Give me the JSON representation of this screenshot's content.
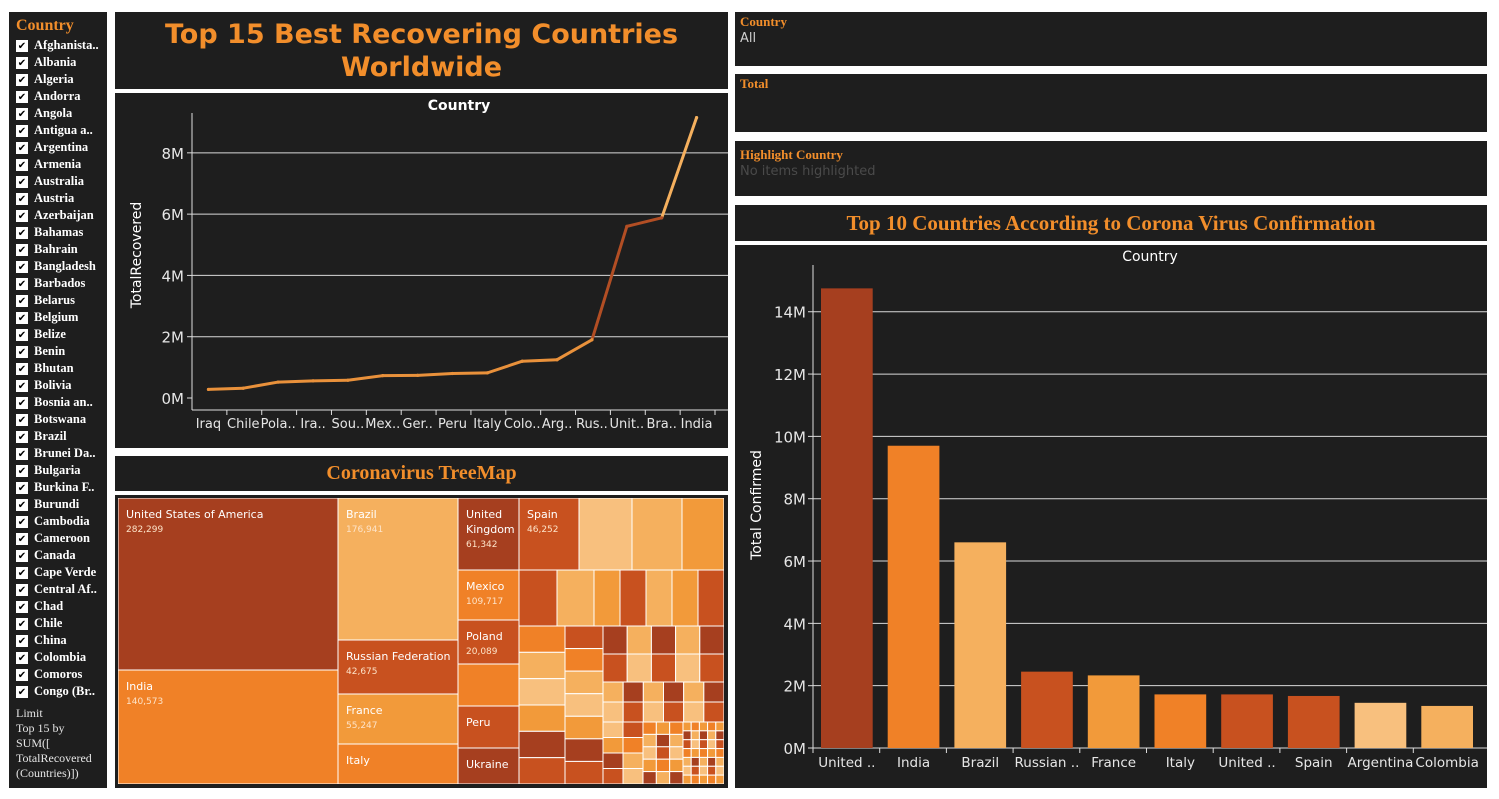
{
  "filters": {
    "country_header": "Country",
    "countries": [
      "Afghanista..",
      "Albania",
      "Algeria",
      "Andorra",
      "Angola",
      "Antigua a..",
      "Argentina",
      "Armenia",
      "Australia",
      "Austria",
      "Azerbaijan",
      "Bahamas",
      "Bahrain",
      "Bangladesh",
      "Barbados",
      "Belarus",
      "Belgium",
      "Belize",
      "Benin",
      "Bhutan",
      "Bolivia",
      "Bosnia an..",
      "Botswana",
      "Brazil",
      "Brunei Da..",
      "Bulgaria",
      "Burkina F..",
      "Burundi",
      "Cambodia",
      "Cameroon",
      "Canada",
      "Cape Verde",
      "Central Af..",
      "Chad",
      "Chile",
      "China",
      "Colombia",
      "Comoros",
      "Congo (Br.."
    ],
    "check_glyph": "✔",
    "limit_text": "Limit\nTop 15 by\nSUM([\nTotalRecovered\n(Countries)])"
  },
  "right_filters": {
    "country_label": "Country",
    "country_value": "All",
    "total_label": "Total",
    "highlight_label": "Highlight Country",
    "highlight_placeholder": "No items highlighted"
  },
  "titles": {
    "main": "Top 15 Best Recovering Countries Worldwide",
    "treemap": "Coronavirus TreeMap",
    "bar": "Top 10 Countries According to Corona Virus Confirmation"
  },
  "colors": {
    "panel_bg": "#1e1e1e",
    "accent": "#f28e2b",
    "dark_orange": "#a63f1f",
    "mid_orange": "#c8511f",
    "orange": "#f08127",
    "light_orange": "#f5b05e",
    "pale_orange": "#f8c07e",
    "grid": "#d9d9d9"
  },
  "chart_data": [
    {
      "type": "line",
      "title": "Country",
      "ylabel": "TotalRecovered",
      "categories": [
        "Iraq",
        "Chile",
        "Pola..",
        "Ira..",
        "Sou..",
        "Mex..",
        "Ger..",
        "Peru",
        "Italy",
        "Colo..",
        "Arg..",
        "Rus..",
        "Unit..",
        "Bra..",
        "India"
      ],
      "values": [
        280000,
        320000,
        520000,
        560000,
        580000,
        730000,
        740000,
        800000,
        820000,
        1200000,
        1250000,
        1900000,
        5600000,
        5880000,
        9150000
      ],
      "yticks": [
        0,
        2000000,
        4000000,
        6000000,
        8000000
      ],
      "ytick_labels": [
        "0M",
        "2M",
        "4M",
        "6M",
        "8M"
      ],
      "ylim": [
        0,
        9300000
      ],
      "grid": true
    },
    {
      "type": "treemap",
      "title": "Coronavirus TreeMap",
      "items": [
        {
          "name": "United States of America",
          "value": "282,299"
        },
        {
          "name": "India",
          "value": "140,573"
        },
        {
          "name": "Brazil",
          "value": "176,941"
        },
        {
          "name": "Russian Federation",
          "value": "42,675"
        },
        {
          "name": "France",
          "value": "55,247"
        },
        {
          "name": "Italy",
          "value": ""
        },
        {
          "name": "United Kingdom",
          "value": "61,342"
        },
        {
          "name": "Spain",
          "value": "46,252"
        },
        {
          "name": "Mexico",
          "value": "109,717"
        },
        {
          "name": "Poland",
          "value": "20,089"
        },
        {
          "name": "Peru",
          "value": ""
        },
        {
          "name": "Ukraine",
          "value": ""
        }
      ]
    },
    {
      "type": "bar",
      "title": "Country",
      "ylabel": "Total Confirmed",
      "categories": [
        "United ..",
        "India",
        "Brazil",
        "Russian ..",
        "France",
        "Italy",
        "United ..",
        "Spain",
        "Argentina",
        "Colombia"
      ],
      "values": [
        14750000,
        9700000,
        6600000,
        2450000,
        2330000,
        1720000,
        1720000,
        1670000,
        1450000,
        1350000
      ],
      "yticks": [
        0,
        2000000,
        4000000,
        6000000,
        8000000,
        10000000,
        12000000,
        14000000
      ],
      "ytick_labels": [
        "0M",
        "2M",
        "4M",
        "6M",
        "8M",
        "10M",
        "12M",
        "14M"
      ],
      "ylim": [
        0,
        15500000
      ],
      "grid": true
    }
  ]
}
